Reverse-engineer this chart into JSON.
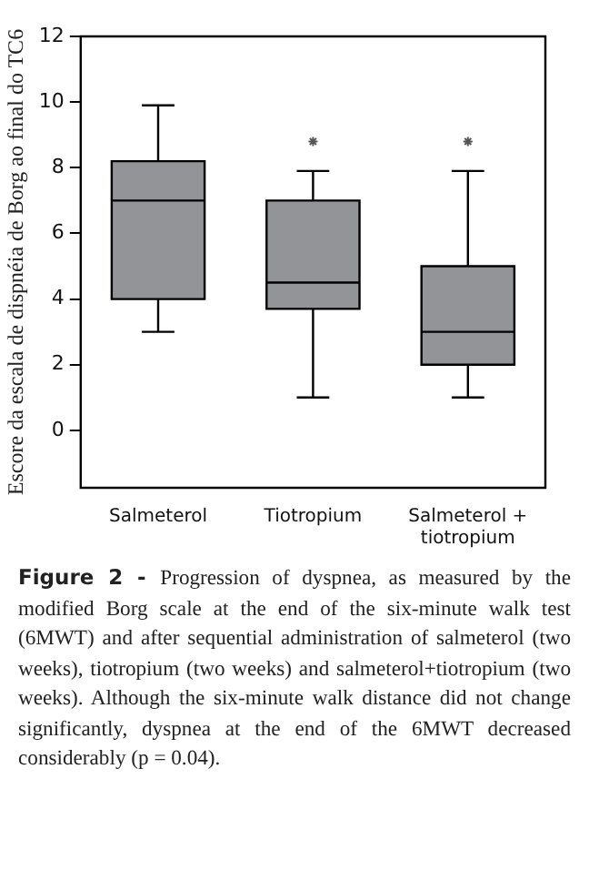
{
  "chart_data": {
    "type": "box",
    "ylabel": "Escore da escala de dispnéia de Borg ao final do TC6",
    "categories": [
      "Salmeterol",
      "Tiotropium",
      "Salmeterol + tiotropium"
    ],
    "color": "#939498",
    "boxes": [
      {
        "low": 3,
        "q1": 4,
        "median": 7,
        "q3": 8.2,
        "high": 9.9
      },
      {
        "low": 1,
        "q1": 3.7,
        "median": 4.5,
        "q3": 7,
        "high": 7.9,
        "outliers": [
          8.8
        ]
      },
      {
        "low": 1,
        "q1": 2,
        "median": 3,
        "q3": 5,
        "high": 7.9,
        "outliers": [
          8.8
        ]
      }
    ],
    "ylim": [
      -1.75,
      12
    ],
    "yticks": [
      0,
      2,
      4,
      6,
      8,
      10,
      12
    ],
    "grid": false,
    "legend": false,
    "annotations": [
      "Figure 2 -",
      "Progression of dyspnea, as measured by the modified Borg scale at the end of the six-minute walk test (6MWT) and after sequential administration of salmeterol (two weeks), tiotropium (two weeks) and salmeterol+tiotropium (two weeks). Although the six-minute walk distance did not change significantly, dyspnea at the end of the 6MWT decreased considerably (p = 0.04)."
    ]
  }
}
